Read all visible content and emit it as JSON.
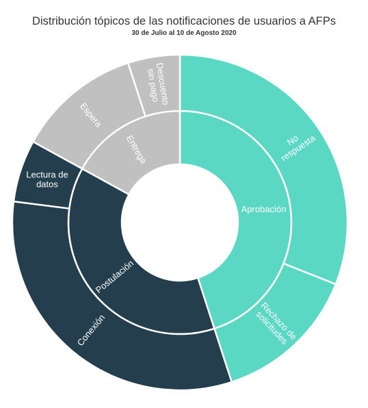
{
  "title": "Distribución tópicos de las notificaciones de usuarios a AFPs",
  "subtitle": "30 de Julio al 10 de Agosto 2020",
  "colors": {
    "aprobacion": "#5ad8c4",
    "postulacion": "#243e4e",
    "entrega": "#c0c0c0",
    "background": "#ffffff"
  },
  "chart_data": {
    "type": "sunburst",
    "title": "Distribución tópicos de las notificaciones de usuarios a AFPs",
    "subtitle": "30 de Julio al 10 de Agosto 2020",
    "unit": "percent of total (estimated)",
    "categories": [
      {
        "name": "Aprobación",
        "color": "#5ad8c4",
        "value": 45,
        "children": [
          {
            "name": "No respuesta",
            "value": 31
          },
          {
            "name": "Rechazo de solicitudes",
            "value": 14
          }
        ]
      },
      {
        "name": "Postulación",
        "color": "#243e4e",
        "value": 38,
        "children": [
          {
            "name": "Conexión",
            "value": 32
          },
          {
            "name": "Lectura de datos",
            "value": 6
          }
        ]
      },
      {
        "name": "Entrega",
        "color": "#c0c0c0",
        "value": 17,
        "children": [
          {
            "name": "Espera",
            "value": 12
          },
          {
            "name": "Descuento sin pago",
            "value": 5
          }
        ]
      }
    ]
  }
}
